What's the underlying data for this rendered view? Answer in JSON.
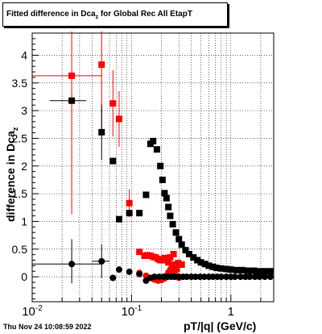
{
  "header": {
    "title_main": "Fitted difference in Dca",
    "title_sub": "z",
    "title_tail": " for Global Rec All EtapT"
  },
  "axes": {
    "ylabel_main": "difference in Dca",
    "ylabel_sub": "z",
    "xlabel": "pT/|q| (GeV/c)"
  },
  "footer": {
    "timestamp": "Thu Nov 24 10:08:59 2022"
  },
  "colors": {
    "red": "#ff0000",
    "black": "#000000",
    "grid": "#000000"
  },
  "chart_data": {
    "type": "scatter",
    "title": "Fitted difference in Dca_z for Global Rec All EtapT",
    "xlabel": "pT/|q| (GeV/c)",
    "ylabel": "difference in Dca_z",
    "x_scale": "log",
    "xlim": [
      0.01,
      2.7
    ],
    "ylim": [
      -0.45,
      4.4
    ],
    "grid": true,
    "x_ticks": [
      {
        "value": 0.01,
        "label": "10",
        "sup": "-2"
      },
      {
        "value": 0.1,
        "label": "10",
        "sup": "-1"
      },
      {
        "value": 1,
        "label": "1",
        "sup": ""
      }
    ],
    "y_ticks": [
      0,
      0.5,
      1,
      1.5,
      2,
      2.5,
      3,
      3.5,
      4
    ],
    "y_tick_labels": [
      "0",
      "0.5",
      "1",
      "1.5",
      "2",
      "2.5",
      "3",
      "3.5",
      "4"
    ],
    "series": [
      {
        "marker": "square",
        "color": "#ff0000",
        "points": [
          {
            "x": 0.025,
            "y": 3.63,
            "xerr": [
              0.015,
              0.025
            ],
            "yerr": [
              2.5,
              0.8
            ]
          },
          {
            "x": 0.05,
            "y": 3.83,
            "yerr": [
              1.2,
              0.6
            ]
          },
          {
            "x": 0.065,
            "y": 3.13,
            "yerr": [
              0.6,
              0.6
            ]
          },
          {
            "x": 0.075,
            "y": 2.85,
            "yerr": [
              0.5,
              0.5
            ]
          },
          {
            "x": 0.095,
            "y": 1.33,
            "yerr": [
              0.25,
              0.25
            ]
          },
          {
            "x": 0.12,
            "y": 0.45
          },
          {
            "x": 0.135,
            "y": 0.38
          },
          {
            "x": 0.145,
            "y": 0.39
          },
          {
            "x": 0.155,
            "y": 0.38
          },
          {
            "x": 0.165,
            "y": 0.36
          },
          {
            "x": 0.175,
            "y": 0.35
          },
          {
            "x": 0.185,
            "y": 0.32
          },
          {
            "x": 0.195,
            "y": 0.3
          },
          {
            "x": 0.205,
            "y": 0.3
          },
          {
            "x": 0.215,
            "y": 0.34
          },
          {
            "x": 0.225,
            "y": 0.33
          },
          {
            "x": 0.235,
            "y": 0.26
          },
          {
            "x": 0.245,
            "y": 0.35
          },
          {
            "x": 0.255,
            "y": 0.22
          },
          {
            "x": 0.265,
            "y": 0.41
          },
          {
            "x": 0.275,
            "y": 0.18
          },
          {
            "x": 0.285,
            "y": 0.14
          },
          {
            "x": 0.295,
            "y": 0.25
          },
          {
            "x": 0.305,
            "y": 0.22
          },
          {
            "x": 0.32,
            "y": 0.22
          }
        ]
      },
      {
        "marker": "square",
        "color": "#000000",
        "points": [
          {
            "x": 0.025,
            "y": 3.18,
            "xerr": [
              0.01,
              0.01
            ]
          },
          {
            "x": 0.05,
            "y": 2.61,
            "yerr": [
              0.5,
              0.5
            ]
          },
          {
            "x": 0.065,
            "y": 2.09
          },
          {
            "x": 0.075,
            "y": 1.04
          },
          {
            "x": 0.095,
            "y": 1.15
          },
          {
            "x": 0.12,
            "y": 1.15
          },
          {
            "x": 0.14,
            "y": 1.48
          },
          {
            "x": 0.155,
            "y": 2.4
          },
          {
            "x": 0.165,
            "y": 2.45
          },
          {
            "x": 0.18,
            "y": 2.3
          },
          {
            "x": 0.195,
            "y": 2.0
          },
          {
            "x": 0.205,
            "y": 1.75
          },
          {
            "x": 0.215,
            "y": 1.51
          },
          {
            "x": 0.225,
            "y": 1.42
          },
          {
            "x": 0.235,
            "y": 1.26
          },
          {
            "x": 0.245,
            "y": 1.1
          },
          {
            "x": 0.26,
            "y": 0.95
          },
          {
            "x": 0.28,
            "y": 0.8
          },
          {
            "x": 0.3,
            "y": 0.68
          },
          {
            "x": 0.32,
            "y": 0.58
          },
          {
            "x": 0.35,
            "y": 0.48
          },
          {
            "x": 0.38,
            "y": 0.41
          },
          {
            "x": 0.42,
            "y": 0.35
          },
          {
            "x": 0.46,
            "y": 0.3
          },
          {
            "x": 0.5,
            "y": 0.26
          },
          {
            "x": 0.55,
            "y": 0.23
          },
          {
            "x": 0.6,
            "y": 0.2
          },
          {
            "x": 0.66,
            "y": 0.18
          },
          {
            "x": 0.72,
            "y": 0.16
          },
          {
            "x": 0.8,
            "y": 0.15
          },
          {
            "x": 0.9,
            "y": 0.14
          },
          {
            "x": 1.0,
            "y": 0.13
          },
          {
            "x": 1.15,
            "y": 0.12
          },
          {
            "x": 1.3,
            "y": 0.12
          },
          {
            "x": 1.5,
            "y": 0.11
          },
          {
            "x": 1.7,
            "y": 0.11
          },
          {
            "x": 1.95,
            "y": 0.1
          },
          {
            "x": 2.2,
            "y": 0.1
          },
          {
            "x": 2.5,
            "y": 0.1
          }
        ]
      },
      {
        "marker": "circle",
        "color": "#ff0000",
        "points": [
          {
            "x": 0.12,
            "y": 0.07
          },
          {
            "x": 0.14,
            "y": 0.02
          },
          {
            "x": 0.155,
            "y": -0.02
          },
          {
            "x": 0.17,
            "y": -0.05
          },
          {
            "x": 0.185,
            "y": -0.07
          },
          {
            "x": 0.2,
            "y": -0.06
          },
          {
            "x": 0.215,
            "y": -0.03
          },
          {
            "x": 0.225,
            "y": 0.02
          },
          {
            "x": 0.235,
            "y": 0.08
          },
          {
            "x": 0.245,
            "y": 0.13
          },
          {
            "x": 0.255,
            "y": 0.18
          },
          {
            "x": 0.265,
            "y": 0.1
          },
          {
            "x": 0.275,
            "y": 0.04
          },
          {
            "x": 0.285,
            "y": 0.0
          },
          {
            "x": 0.3,
            "y": -0.02
          }
        ]
      },
      {
        "marker": "circle",
        "color": "#000000",
        "points": [
          {
            "x": 0.025,
            "y": 0.23,
            "xerr": [
              0.015,
              0.025
            ],
            "yerr": [
              0.35,
              0.45
            ]
          },
          {
            "x": 0.05,
            "y": 0.28,
            "xerr": [
              0.01,
              0.01
            ],
            "yerr": [
              0.3,
              0.3
            ]
          },
          {
            "x": 0.065,
            "y": -0.02
          },
          {
            "x": 0.075,
            "y": 0.13
          },
          {
            "x": 0.095,
            "y": 0.09
          },
          {
            "x": 0.12,
            "y": 0.05
          },
          {
            "x": 0.14,
            "y": -0.07
          },
          {
            "x": 0.155,
            "y": -0.02
          },
          {
            "x": 0.17,
            "y": 0.0
          },
          {
            "x": 0.19,
            "y": 0.0
          },
          {
            "x": 0.21,
            "y": 0.0
          },
          {
            "x": 0.23,
            "y": 0.0
          },
          {
            "x": 0.25,
            "y": 0.0
          },
          {
            "x": 0.27,
            "y": 0.0
          },
          {
            "x": 0.3,
            "y": 0.0
          },
          {
            "x": 0.33,
            "y": 0.0
          },
          {
            "x": 0.36,
            "y": 0.0
          },
          {
            "x": 0.4,
            "y": 0.0
          },
          {
            "x": 0.44,
            "y": 0.0
          },
          {
            "x": 0.49,
            "y": 0.0
          },
          {
            "x": 0.54,
            "y": 0.0
          },
          {
            "x": 0.6,
            "y": 0.0
          },
          {
            "x": 0.66,
            "y": 0.0
          },
          {
            "x": 0.73,
            "y": 0.0
          },
          {
            "x": 0.8,
            "y": 0.0
          },
          {
            "x": 0.9,
            "y": 0.0
          },
          {
            "x": 1.0,
            "y": 0.0
          },
          {
            "x": 1.1,
            "y": 0.0
          },
          {
            "x": 1.25,
            "y": 0.0
          },
          {
            "x": 1.4,
            "y": 0.0
          },
          {
            "x": 1.55,
            "y": 0.0
          },
          {
            "x": 1.75,
            "y": 0.0
          },
          {
            "x": 1.95,
            "y": 0.0
          },
          {
            "x": 2.2,
            "y": 0.0
          },
          {
            "x": 2.5,
            "y": 0.0
          }
        ]
      }
    ]
  }
}
